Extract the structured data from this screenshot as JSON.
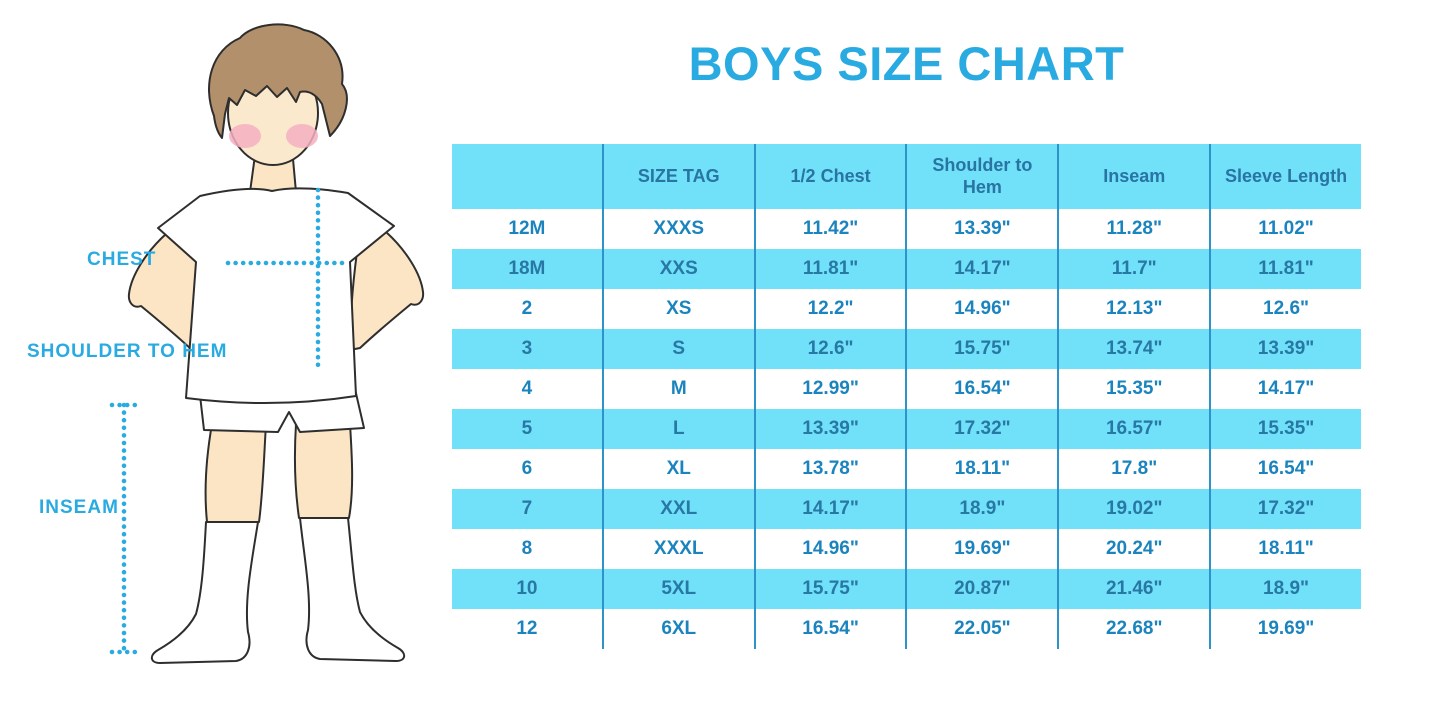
{
  "title": "BOYS SIZE CHART",
  "figure_labels": {
    "chest": "CHEST",
    "shoulder_to_hem": "SHOULDER TO HEM",
    "inseam": "INSEAM"
  },
  "chart_data": {
    "type": "table",
    "title": "BOYS SIZE CHART",
    "columns": [
      "",
      "SIZE TAG",
      "1/2 Chest",
      "Shoulder to Hem",
      "Inseam",
      "Sleeve Length"
    ],
    "rows": [
      [
        "12M",
        "XXXS",
        "11.42\"",
        "13.39\"",
        "11.28\"",
        "11.02\""
      ],
      [
        "18M",
        "XXS",
        "11.81\"",
        "14.17\"",
        "11.7\"",
        "11.81\""
      ],
      [
        "2",
        "XS",
        "12.2\"",
        "14.96\"",
        "12.13\"",
        "12.6\""
      ],
      [
        "3",
        "S",
        "12.6\"",
        "15.75\"",
        "13.74\"",
        "13.39\""
      ],
      [
        "4",
        "M",
        "12.99\"",
        "16.54\"",
        "15.35\"",
        "14.17\""
      ],
      [
        "5",
        "L",
        "13.39\"",
        "17.32\"",
        "16.57\"",
        "15.35\""
      ],
      [
        "6",
        "XL",
        "13.78\"",
        "18.11\"",
        "17.8\"",
        "16.54\""
      ],
      [
        "7",
        "XXL",
        "14.17\"",
        "18.9\"",
        "19.02\"",
        "17.32\""
      ],
      [
        "8",
        "XXXL",
        "14.96\"",
        "19.69\"",
        "20.24\"",
        "18.11\""
      ],
      [
        "10",
        "5XL",
        "15.75\"",
        "20.87\"",
        "21.46\"",
        "18.9\""
      ],
      [
        "12",
        "6XL",
        "16.54\"",
        "22.05\"",
        "22.68\"",
        "19.69\""
      ]
    ],
    "units": "inches",
    "highlighted_row_indexes": [
      1,
      3,
      5,
      7,
      9
    ]
  },
  "colors": {
    "accent_blue": "#29ABE2",
    "row_highlight": "#71E0F9",
    "column_divider": "#2D93C9",
    "table_text": "#1B84BE",
    "table_text_on_blue": "#2778A5",
    "header_text": "#2874A3",
    "skin": "#FBE5C4",
    "hair": "#B2906B",
    "blush": "#F4AFC0"
  }
}
